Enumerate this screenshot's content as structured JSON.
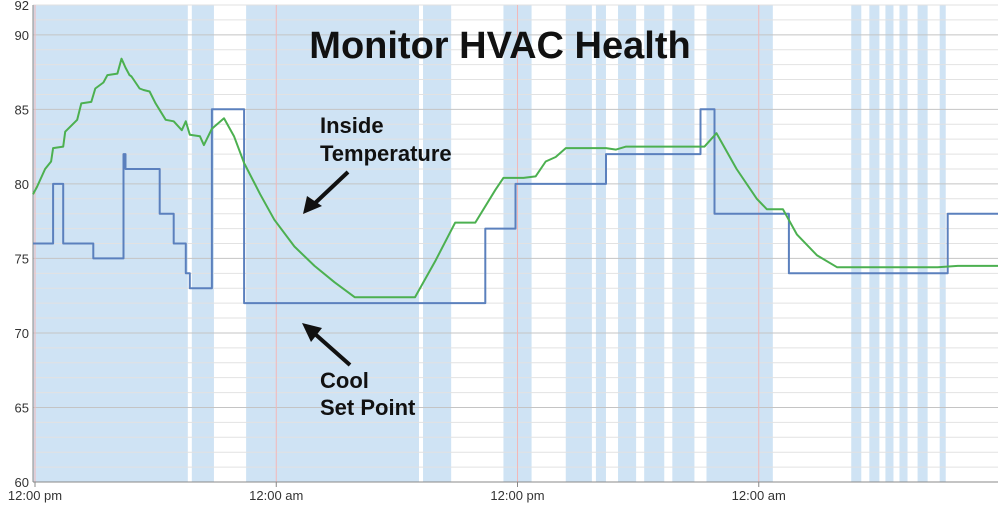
{
  "chart_data": {
    "type": "line",
    "title": "Monitor HVAC Health",
    "xlabel": "",
    "ylabel": "",
    "ylim": [
      60,
      92
    ],
    "xlim": [
      0,
      48
    ],
    "y_ticks": [
      {
        "value": 60,
        "label": "60"
      },
      {
        "value": 65,
        "label": "65"
      },
      {
        "value": 70,
        "label": "70"
      },
      {
        "value": 75,
        "label": "75"
      },
      {
        "value": 80,
        "label": "80"
      },
      {
        "value": 85,
        "label": "85"
      },
      {
        "value": 90,
        "label": "90"
      },
      {
        "value": 92,
        "label": "92"
      }
    ],
    "x_ticks": [
      {
        "value": 0.1,
        "label": "12:00 pm"
      },
      {
        "value": 12.1,
        "label": "12:00 am"
      },
      {
        "value": 24.1,
        "label": "12:00 pm"
      },
      {
        "value": 36.1,
        "label": "12:00 am"
      }
    ],
    "grid": true,
    "legend": "none",
    "colors": {
      "inside": "#4cb050",
      "setpoint": "#5b80bd",
      "band": "#cfe3f4",
      "grid": "#d9d9d9",
      "axis": "#888888"
    },
    "shaded_periods": [
      [
        0.0,
        7.7
      ],
      [
        7.9,
        9.0
      ],
      [
        10.6,
        19.2
      ],
      [
        19.4,
        20.8
      ],
      [
        23.4,
        24.8
      ],
      [
        26.5,
        27.8
      ],
      [
        28.0,
        28.5
      ],
      [
        29.1,
        30.0
      ],
      [
        30.4,
        31.4
      ],
      [
        31.8,
        32.9
      ],
      [
        33.5,
        36.8
      ],
      [
        40.7,
        41.2
      ],
      [
        41.6,
        42.1
      ],
      [
        42.4,
        42.8
      ],
      [
        43.1,
        43.5
      ],
      [
        44.0,
        44.5
      ],
      [
        45.1,
        45.4
      ]
    ],
    "series": [
      {
        "key": "inside",
        "x": [
          0,
          0.2,
          0.6,
          0.9,
          1.0,
          1.5,
          1.6,
          2.2,
          2.4,
          2.9,
          3.1,
          3.5,
          3.7,
          4.2,
          4.4,
          4.5,
          4.6,
          4.8,
          4.9,
          5.3,
          5.5,
          5.8,
          6.1,
          6.6,
          7.0,
          7.4,
          7.6,
          7.8,
          8.3,
          8.5,
          8.9,
          9.5,
          10.0,
          10.5,
          11.3,
          12.0,
          13.0,
          14.0,
          15.0,
          16.0,
          17.0,
          18.0,
          18.8,
          19.0,
          20.0,
          21.0,
          22.0,
          23.0,
          23.4,
          24.0,
          24.4,
          25.0,
          25.5,
          26.0,
          26.5,
          28.0,
          28.5,
          29.0,
          29.5,
          29.7,
          30.0,
          31.0,
          32.0,
          33.0,
          33.4,
          34.0,
          35.0,
          36.0,
          36.5,
          37.3,
          38.0,
          39.0,
          40.0,
          41.0,
          42.0,
          43.0,
          44.0,
          45.0,
          46.0,
          47.0,
          48.0
        ],
        "values": [
          79.3,
          79.8,
          81.0,
          81.5,
          82.4,
          82.5,
          83.5,
          84.3,
          85.4,
          85.5,
          86.4,
          86.8,
          87.3,
          87.4,
          88.4,
          88.1,
          87.8,
          87.3,
          87.2,
          86.4,
          86.3,
          86.2,
          85.4,
          84.3,
          84.2,
          83.6,
          84.2,
          83.3,
          83.2,
          82.6,
          83.7,
          84.4,
          83.2,
          81.4,
          79.3,
          77.6,
          75.8,
          74.5,
          73.4,
          72.4,
          72.4,
          72.4,
          72.4,
          72.4,
          74.8,
          77.4,
          77.4,
          79.6,
          80.4,
          80.4,
          80.4,
          80.5,
          81.5,
          81.8,
          82.4,
          82.4,
          82.4,
          82.3,
          82.5,
          82.5,
          82.5,
          82.5,
          82.5,
          82.5,
          82.5,
          83.4,
          81.0,
          79.0,
          78.3,
          78.3,
          76.6,
          75.2,
          74.4,
          74.4,
          74.4,
          74.4,
          74.4,
          74.4,
          74.5,
          74.5,
          74.5
        ]
      },
      {
        "key": "setpoint",
        "x": [
          0,
          1.0,
          1.0,
          1.5,
          1.5,
          3.0,
          3.0,
          4.5,
          4.5,
          4.6,
          4.6,
          6.3,
          6.3,
          7.0,
          7.0,
          7.6,
          7.6,
          7.8,
          7.8,
          8.9,
          8.9,
          10.5,
          10.5,
          21.0,
          21.0,
          22.5,
          22.5,
          24.0,
          24.0,
          25.2,
          25.2,
          28.5,
          28.5,
          33.2,
          33.2,
          33.9,
          33.9,
          37.6,
          37.6,
          45.5,
          45.5,
          48.0
        ],
        "values": [
          76,
          76,
          80,
          80,
          76,
          76,
          75,
          75,
          82,
          82,
          81,
          81,
          78,
          78,
          76,
          76,
          74,
          74,
          73,
          73,
          85,
          85,
          72,
          72,
          72,
          72,
          77,
          77,
          80,
          80,
          80,
          80,
          82,
          82,
          85,
          85,
          78,
          78,
          74,
          74,
          78,
          78
        ]
      }
    ],
    "annotations": {
      "inside_line1": "Inside",
      "inside_line2": "Temperature",
      "cool_line1": "Cool",
      "cool_line2": "Set Point"
    }
  }
}
